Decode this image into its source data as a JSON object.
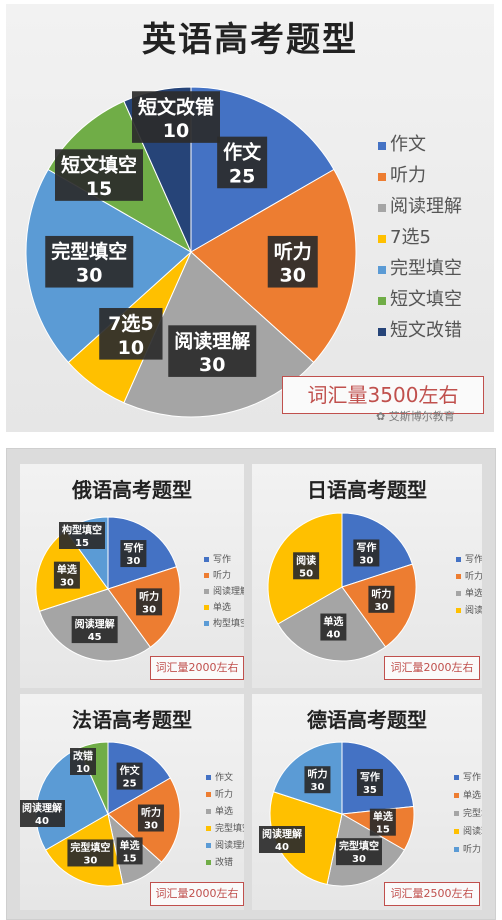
{
  "watermark": "艾斯博尔教育",
  "chart_data": [
    {
      "type": "pie",
      "title": "英语高考题型",
      "categories": [
        "作文",
        "听力",
        "阅读理解",
        "7选5",
        "完型填空",
        "短文填空",
        "短文改错"
      ],
      "values": [
        25,
        30,
        30,
        10,
        30,
        15,
        10
      ],
      "colors": [
        "#4472c4",
        "#ed7d31",
        "#a5a5a5",
        "#ffc000",
        "#5b9bd5",
        "#70ad47",
        "#264478"
      ],
      "legend": [
        "作文",
        "听力",
        "阅读理解",
        "7选5",
        "完型填空",
        "短文填空",
        "短文改错"
      ],
      "legend_position": "right",
      "note": "词汇量3500左右"
    },
    {
      "type": "pie",
      "title": "俄语高考题型",
      "categories": [
        "写作",
        "听力",
        "阅读理解",
        "单选",
        "构型填空"
      ],
      "values": [
        30,
        30,
        45,
        30,
        15
      ],
      "colors": [
        "#4472c4",
        "#ed7d31",
        "#a5a5a5",
        "#ffc000",
        "#5b9bd5"
      ],
      "legend": [
        "写作",
        "听力",
        "阅读理解",
        "单选",
        "构型填空"
      ],
      "legend_position": "right",
      "note": "词汇量2000左右"
    },
    {
      "type": "pie",
      "title": "日语高考题型",
      "categories": [
        "写作",
        "听力",
        "单选",
        "阅读"
      ],
      "values": [
        30,
        30,
        40,
        50
      ],
      "colors": [
        "#4472c4",
        "#ed7d31",
        "#a5a5a5",
        "#ffc000"
      ],
      "legend": [
        "写作",
        "听力",
        "单选",
        "阅读"
      ],
      "legend_position": "right",
      "note": "词汇量2000左右"
    },
    {
      "type": "pie",
      "title": "法语高考题型",
      "categories": [
        "作文",
        "听力",
        "单选",
        "完型填空",
        "阅读理解",
        "改错"
      ],
      "values": [
        25,
        30,
        15,
        30,
        40,
        10
      ],
      "colors": [
        "#4472c4",
        "#ed7d31",
        "#a5a5a5",
        "#ffc000",
        "#5b9bd5",
        "#70ad47"
      ],
      "legend": [
        "作文",
        "听力",
        "单选",
        "完型填空",
        "阅读理解",
        "改错"
      ],
      "legend_position": "right",
      "note": "词汇量2000左右"
    },
    {
      "type": "pie",
      "title": "德语高考题型",
      "categories": [
        "写作",
        "单选",
        "完型填空",
        "阅读理解",
        "听力"
      ],
      "values": [
        35,
        15,
        30,
        40,
        30
      ],
      "colors": [
        "#4472c4",
        "#ed7d31",
        "#a5a5a5",
        "#ffc000",
        "#5b9bd5"
      ],
      "legend": [
        "写作",
        "单选",
        "完型填空",
        "阅读理解",
        "听力"
      ],
      "legend_position": "right",
      "note": "词汇量2500左右"
    }
  ]
}
